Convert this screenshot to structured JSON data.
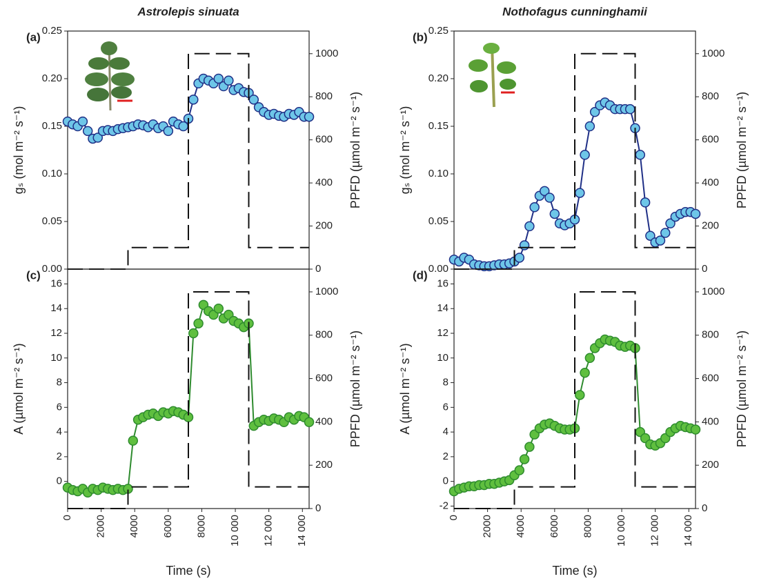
{
  "chart_data": [
    {
      "type": "line",
      "panel_label": "(a)",
      "title": "Astrolepis sinuata",
      "ylabel": "gₛ (mol m⁻² s⁻¹)",
      "y2label": "PPFD (µmol m⁻² s⁻¹)",
      "x": [
        0,
        300,
        600,
        900,
        1200,
        1500,
        1800,
        2100,
        2400,
        2700,
        3000,
        3300,
        3600,
        3900,
        4200,
        4500,
        4800,
        5100,
        5400,
        5700,
        6000,
        6300,
        6600,
        6900,
        7200,
        7500,
        7800,
        8100,
        8400,
        8700,
        9000,
        9300,
        9600,
        9900,
        10200,
        10500,
        10800,
        11100,
        11400,
        11700,
        12000,
        12300,
        12600,
        12900,
        13200,
        13500,
        13800,
        14100,
        14400
      ],
      "xlim": [
        0,
        14400
      ],
      "ylim": [
        0,
        0.25
      ],
      "yticks": [
        {
          "value": 0,
          "label": "0.00"
        },
        {
          "value": 0.05,
          "label": "0.05"
        },
        {
          "value": 0.1,
          "label": "0.10"
        },
        {
          "value": 0.15,
          "label": "0.15"
        },
        {
          "value": 0.2,
          "label": "0.20"
        },
        {
          "value": 0.25,
          "label": "0.25"
        }
      ],
      "y2lim": [
        0,
        1105
      ],
      "y2ticks": [
        0,
        200,
        400,
        600,
        800,
        1000
      ],
      "series": [
        {
          "color": "#1f2f86",
          "marker_color": "#6ec6e8",
          "values": [
            0.155,
            0.152,
            0.15,
            0.155,
            0.145,
            0.137,
            0.138,
            0.145,
            0.146,
            0.145,
            0.147,
            0.148,
            0.149,
            0.15,
            0.152,
            0.151,
            0.149,
            0.152,
            0.148,
            0.15,
            0.145,
            0.155,
            0.152,
            0.15,
            0.158,
            0.178,
            0.195,
            0.2,
            0.198,
            0.195,
            0.2,
            0.192,
            0.198,
            0.188,
            0.19,
            0.186,
            0.185,
            0.178,
            0.17,
            0.165,
            0.162,
            0.163,
            0.161,
            0.16,
            0.163,
            0.162,
            0.165,
            0.16,
            0.16
          ]
        },
        {
          "axis": "y2",
          "color": "#111111",
          "dashed": true,
          "x": [
            0,
            3600,
            3600,
            7200,
            7200,
            10800,
            10800,
            14400
          ],
          "values": [
            0,
            0,
            100,
            100,
            1000,
            1000,
            100,
            100
          ]
        }
      ]
    },
    {
      "type": "line",
      "panel_label": "(b)",
      "title": "Nothofagus cunninghamii",
      "ylabel": "gₛ (mol m⁻² s⁻¹)",
      "y2label": "PPFD (µmol m⁻² s⁻¹)",
      "x": [
        0,
        300,
        600,
        900,
        1200,
        1500,
        1800,
        2100,
        2400,
        2700,
        3000,
        3300,
        3600,
        3900,
        4200,
        4500,
        4800,
        5100,
        5400,
        5700,
        6000,
        6300,
        6600,
        6900,
        7200,
        7500,
        7800,
        8100,
        8400,
        8700,
        9000,
        9300,
        9600,
        9900,
        10200,
        10500,
        10800,
        11100,
        11400,
        11700,
        12000,
        12300,
        12600,
        12900,
        13200,
        13500,
        13800,
        14100,
        14400
      ],
      "xlim": [
        0,
        14400
      ],
      "ylim": [
        0,
        0.25
      ],
      "yticks": [
        {
          "value": 0,
          "label": "0.00"
        },
        {
          "value": 0.05,
          "label": "0.05"
        },
        {
          "value": 0.1,
          "label": "0.10"
        },
        {
          "value": 0.15,
          "label": "0.15"
        },
        {
          "value": 0.2,
          "label": "0.20"
        },
        {
          "value": 0.25,
          "label": "0.25"
        }
      ],
      "y2lim": [
        0,
        1105
      ],
      "y2ticks": [
        0,
        200,
        400,
        600,
        800,
        1000
      ],
      "series": [
        {
          "color": "#1f2f86",
          "marker_color": "#6ec6e8",
          "values": [
            0.01,
            0.008,
            0.012,
            0.01,
            0.005,
            0.004,
            0.003,
            0.003,
            0.004,
            0.005,
            0.005,
            0.006,
            0.008,
            0.012,
            0.025,
            0.045,
            0.065,
            0.077,
            0.082,
            0.075,
            0.058,
            0.048,
            0.046,
            0.048,
            0.052,
            0.08,
            0.12,
            0.15,
            0.165,
            0.172,
            0.175,
            0.172,
            0.168,
            0.168,
            0.168,
            0.168,
            0.148,
            0.12,
            0.07,
            0.035,
            0.028,
            0.03,
            0.038,
            0.048,
            0.055,
            0.058,
            0.06,
            0.06,
            0.058
          ]
        },
        {
          "axis": "y2",
          "color": "#111111",
          "dashed": true,
          "x": [
            0,
            3600,
            3600,
            7200,
            7200,
            10800,
            10800,
            14400
          ],
          "values": [
            0,
            0,
            100,
            100,
            1000,
            1000,
            100,
            100
          ]
        }
      ]
    },
    {
      "type": "line",
      "panel_label": "(c)",
      "ylabel": "A (µmol m⁻² s⁻¹)",
      "y2label": "PPFD (µmol m⁻² s⁻¹)",
      "xlabel": "Time (s)",
      "x": [
        0,
        300,
        600,
        900,
        1200,
        1500,
        1800,
        2100,
        2400,
        2700,
        3000,
        3300,
        3600,
        3900,
        4200,
        4500,
        4800,
        5100,
        5400,
        5700,
        6000,
        6300,
        6600,
        6900,
        7200,
        7500,
        7800,
        8100,
        8400,
        8700,
        9000,
        9300,
        9600,
        9900,
        10200,
        10500,
        10800,
        11100,
        11400,
        11700,
        12000,
        12300,
        12600,
        12900,
        13200,
        13500,
        13800,
        14100,
        14400
      ],
      "xlim": [
        0,
        14400
      ],
      "xticks": [
        0,
        2000,
        4000,
        6000,
        8000,
        {
          "value": 10000,
          "label": "10 000"
        },
        {
          "value": 12000,
          "label": "12 000"
        },
        {
          "value": 14000,
          "label": "14 000"
        }
      ],
      "ylim": [
        -2.2,
        17.2
      ],
      "yticks": [
        0,
        2,
        4,
        6,
        8,
        10,
        12,
        14,
        16
      ],
      "y2lim": [
        0,
        1105
      ],
      "y2ticks": [
        0,
        200,
        400,
        600,
        800,
        1000
      ],
      "series": [
        {
          "color": "#2e8b2e",
          "marker_color": "#5fbf3f",
          "values": [
            -0.5,
            -0.7,
            -0.8,
            -0.6,
            -0.9,
            -0.6,
            -0.7,
            -0.5,
            -0.6,
            -0.7,
            -0.6,
            -0.7,
            -0.6,
            3.3,
            5.0,
            5.2,
            5.4,
            5.5,
            5.3,
            5.6,
            5.5,
            5.7,
            5.6,
            5.4,
            5.2,
            12.0,
            12.8,
            14.3,
            13.8,
            13.5,
            14.0,
            13.2,
            13.5,
            13.0,
            12.8,
            12.5,
            12.8,
            4.5,
            4.8,
            5.0,
            4.9,
            5.1,
            5.0,
            4.8,
            5.2,
            5.0,
            5.3,
            5.2,
            4.8
          ]
        },
        {
          "axis": "y2",
          "color": "#111111",
          "dashed": true,
          "x": [
            0,
            3600,
            3600,
            7200,
            7200,
            10800,
            10800,
            14400
          ],
          "values": [
            0,
            0,
            100,
            100,
            1000,
            1000,
            100,
            100
          ]
        }
      ]
    },
    {
      "type": "line",
      "panel_label": "(d)",
      "ylabel": "A (µmol m⁻² s⁻¹)",
      "y2label": "PPFD (µmol m⁻² s⁻¹)",
      "xlabel": "Time (s)",
      "x": [
        0,
        300,
        600,
        900,
        1200,
        1500,
        1800,
        2100,
        2400,
        2700,
        3000,
        3300,
        3600,
        3900,
        4200,
        4500,
        4800,
        5100,
        5400,
        5700,
        6000,
        6300,
        6600,
        6900,
        7200,
        7500,
        7800,
        8100,
        8400,
        8700,
        9000,
        9300,
        9600,
        9900,
        10200,
        10500,
        10800,
        11100,
        11400,
        11700,
        12000,
        12300,
        12600,
        12900,
        13200,
        13500,
        13800,
        14100,
        14400
      ],
      "xlim": [
        0,
        14400
      ],
      "xticks": [
        0,
        2000,
        4000,
        6000,
        8000,
        {
          "value": 10000,
          "label": "10 000"
        },
        {
          "value": 12000,
          "label": "12 000"
        },
        {
          "value": 14000,
          "label": "14 000"
        }
      ],
      "ylim": [
        -2.2,
        17.2
      ],
      "yticks": [
        -2,
        0,
        2,
        4,
        6,
        8,
        10,
        12,
        14,
        16
      ],
      "y2lim": [
        0,
        1105
      ],
      "y2ticks": [
        0,
        200,
        400,
        600,
        800,
        1000
      ],
      "series": [
        {
          "color": "#2e8b2e",
          "marker_color": "#5fbf3f",
          "values": [
            -0.8,
            -0.6,
            -0.5,
            -0.4,
            -0.4,
            -0.3,
            -0.3,
            -0.2,
            -0.2,
            -0.1,
            0.0,
            0.1,
            0.5,
            0.9,
            1.8,
            2.8,
            3.8,
            4.3,
            4.6,
            4.7,
            4.5,
            4.3,
            4.2,
            4.2,
            4.3,
            7.0,
            8.8,
            10.0,
            10.8,
            11.2,
            11.5,
            11.4,
            11.3,
            11.0,
            10.9,
            11.0,
            10.8,
            4.0,
            3.5,
            3.0,
            2.9,
            3.1,
            3.5,
            4.0,
            4.3,
            4.5,
            4.4,
            4.3,
            4.2
          ]
        },
        {
          "axis": "y2",
          "color": "#111111",
          "dashed": true,
          "x": [
            0,
            3600,
            3600,
            7200,
            7200,
            10800,
            10800,
            14400
          ],
          "values": [
            0,
            0,
            100,
            100,
            1000,
            1000,
            100,
            100
          ]
        }
      ]
    }
  ]
}
